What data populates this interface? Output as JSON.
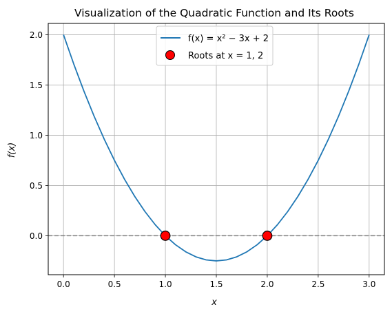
{
  "chart_data": {
    "type": "line",
    "title": "Visualization of the Quadratic Function and Its Roots",
    "xlabel": "x",
    "ylabel": "f(x)",
    "xlim": [
      -0.15,
      3.15
    ],
    "ylim": [
      -0.3875,
      2.1125
    ],
    "grid": true,
    "x_ticks": [
      0.0,
      0.5,
      1.0,
      1.5,
      2.0,
      2.5,
      3.0
    ],
    "x_tick_labels": [
      "0.0",
      "0.5",
      "1.0",
      "1.5",
      "2.0",
      "2.5",
      "3.0"
    ],
    "y_ticks": [
      0.0,
      0.5,
      1.0,
      1.5,
      2.0
    ],
    "y_tick_labels": [
      "0.0",
      "0.5",
      "1.0",
      "1.5",
      "2.0"
    ],
    "legend_position": "upper center",
    "series": [
      {
        "name": "f(x) = x² − 3x + 2",
        "type": "line",
        "color": "#1f77b4",
        "x": [
          0.0,
          0.1,
          0.2,
          0.3,
          0.4,
          0.5,
          0.6,
          0.7,
          0.8,
          0.9,
          1.0,
          1.1,
          1.2,
          1.3,
          1.4,
          1.5,
          1.6,
          1.7,
          1.8,
          1.9,
          2.0,
          2.1,
          2.2,
          2.3,
          2.4,
          2.5,
          2.6,
          2.7,
          2.8,
          2.9,
          3.0
        ],
        "y": [
          2.0,
          1.71,
          1.44,
          1.19,
          0.96,
          0.75,
          0.56,
          0.39,
          0.24,
          0.11,
          0.0,
          -0.09,
          -0.16,
          -0.21,
          -0.24,
          -0.25,
          -0.24,
          -0.21,
          -0.16,
          -0.09,
          0.0,
          0.11,
          0.24,
          0.39,
          0.56,
          0.75,
          0.96,
          1.19,
          1.44,
          1.71,
          2.0
        ]
      },
      {
        "name": "Roots at x = 1, 2",
        "type": "scatter",
        "color": "#ff0000",
        "edge_color": "#000000",
        "points": [
          {
            "x": 1.0,
            "y": 0.0
          },
          {
            "x": 2.0,
            "y": 0.0
          }
        ]
      }
    ],
    "reference_lines": [
      {
        "orientation": "horizontal",
        "y": 0.0,
        "style": "dashed",
        "color": "#808080"
      }
    ]
  }
}
